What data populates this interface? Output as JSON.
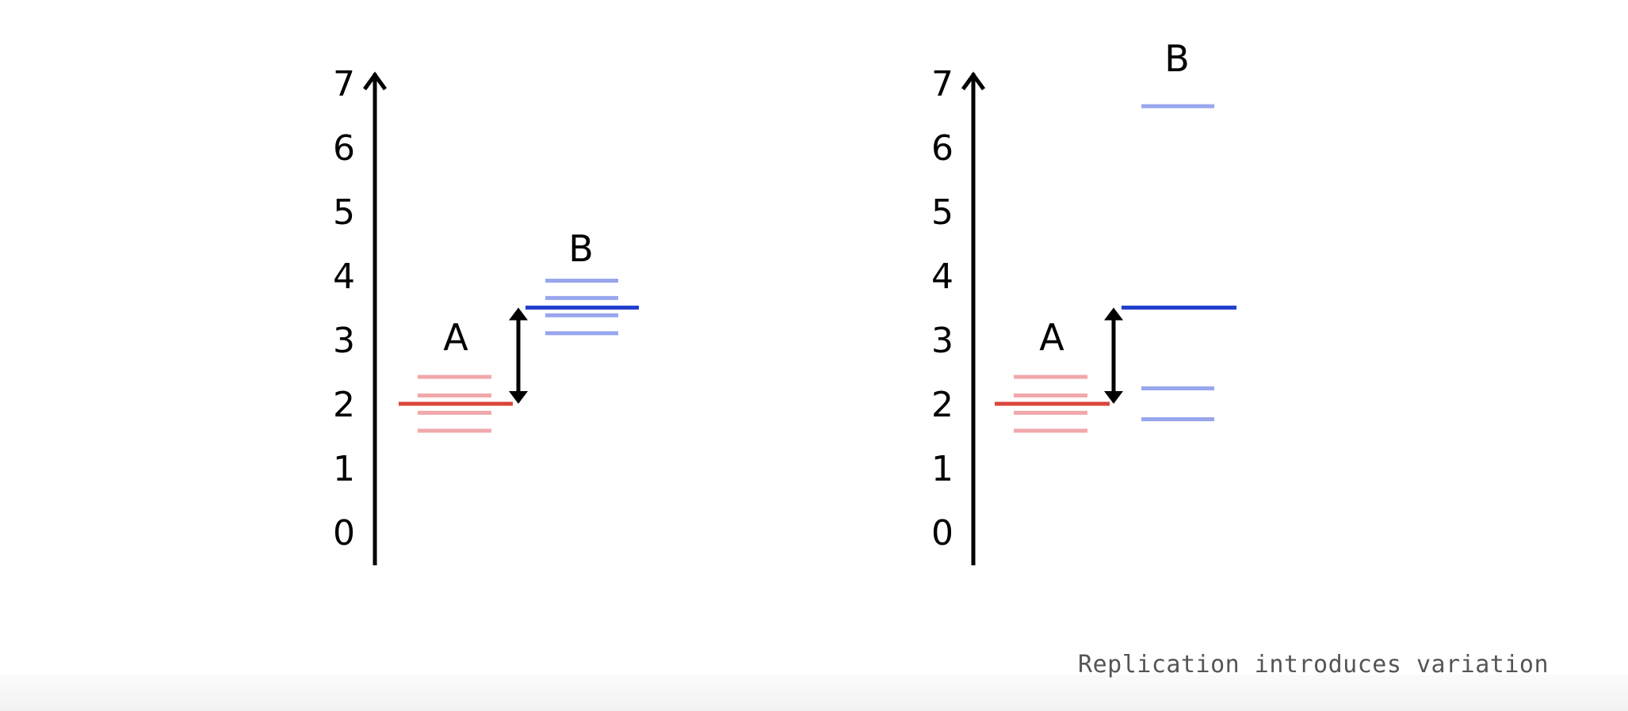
{
  "caption": "Replication introduces variation",
  "colors": {
    "axis": "#000000",
    "a_main": "#d9463a",
    "a_faint": "#f1a8ab",
    "b_main": "#2340cc",
    "b_faint": "#98a6ee",
    "footer_bg": "#f3f3f3",
    "caption_text": "#555555"
  },
  "chart_data": [
    {
      "type": "diagram",
      "y_ticks": [
        "0",
        "1",
        "2",
        "3",
        "4",
        "5",
        "6",
        "7"
      ],
      "ylim": [
        0,
        7.4
      ],
      "groups": [
        {
          "label": "A",
          "main_level": 2.0,
          "faint_levels": [
            2.42,
            2.13,
            1.86,
            1.58
          ],
          "color": "red"
        },
        {
          "label": "B",
          "main_level": 3.5,
          "faint_levels": [
            3.92,
            3.65,
            3.38,
            3.1
          ],
          "color": "blue"
        }
      ],
      "arrow": {
        "from": 2.0,
        "to": 3.5
      }
    },
    {
      "type": "diagram",
      "y_ticks": [
        "0",
        "1",
        "2",
        "3",
        "4",
        "5",
        "6",
        "7"
      ],
      "ylim": [
        0,
        7.4
      ],
      "groups": [
        {
          "label": "A",
          "main_level": 2.0,
          "faint_levels": [
            2.42,
            2.13,
            1.86,
            1.58
          ],
          "color": "red"
        },
        {
          "label": "B",
          "main_level": 3.5,
          "faint_levels": [
            6.64,
            2.24,
            1.76
          ],
          "color": "blue"
        }
      ],
      "arrow": {
        "from": 2.0,
        "to": 3.5
      }
    }
  ]
}
